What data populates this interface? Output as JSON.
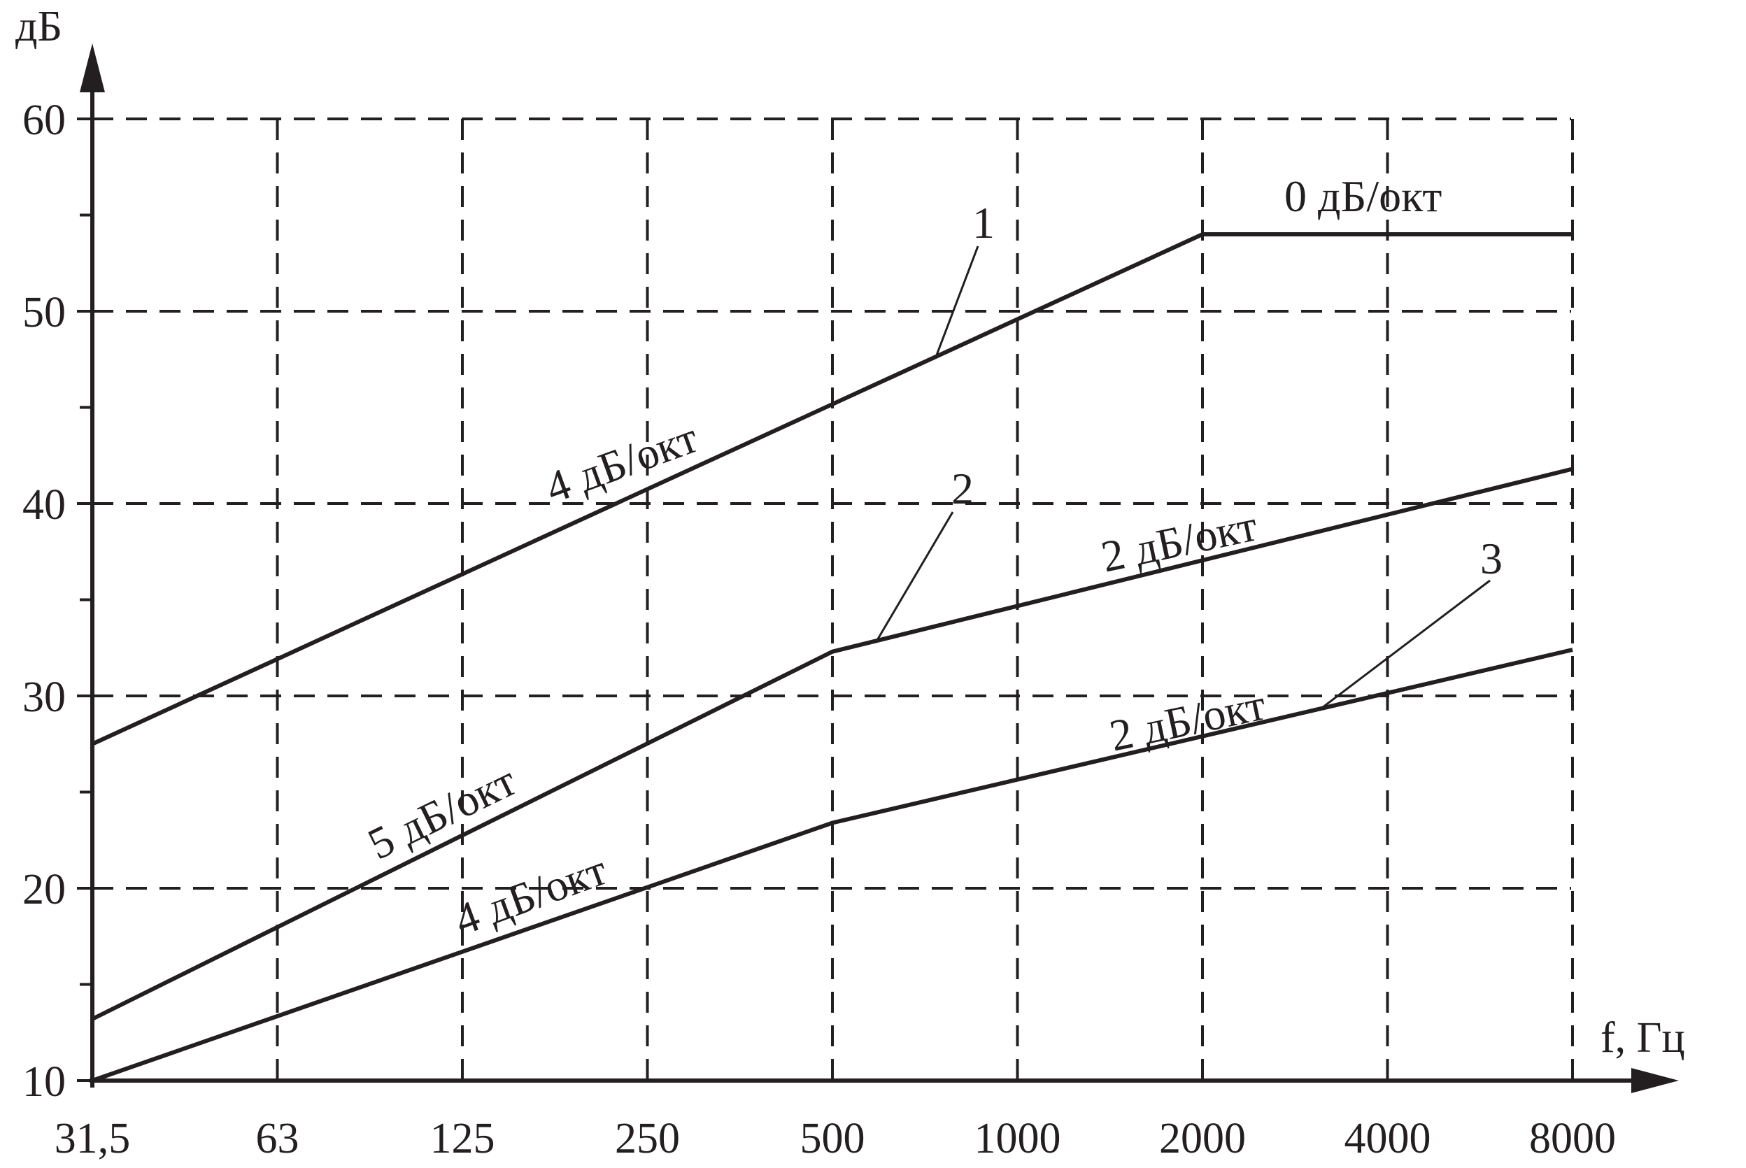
{
  "chart_data": {
    "type": "line",
    "ylabel": "дБ",
    "xlabel": "f, Гц",
    "ylim": [
      10,
      60
    ],
    "yticks": [
      10,
      20,
      30,
      40,
      50,
      60
    ],
    "x_categories": [
      "31,5",
      "63",
      "125",
      "250",
      "500",
      "1000",
      "2000",
      "4000",
      "8000"
    ],
    "grid": true,
    "x_scale": "octave",
    "series": [
      {
        "name": "1",
        "points": [
          {
            "x": "31,5",
            "y": 27.5
          },
          {
            "x": "2000",
            "y": 54
          },
          {
            "x": "8000",
            "y": 54
          }
        ]
      },
      {
        "name": "2",
        "points": [
          {
            "x": "31,5",
            "y": 13.2
          },
          {
            "x": "500",
            "y": 32.3
          },
          {
            "x": "8000",
            "y": 41.8
          }
        ]
      },
      {
        "name": "3",
        "points": [
          {
            "x": "31,5",
            "y": 10
          },
          {
            "x": "500",
            "y": 23.4
          },
          {
            "x": "8000",
            "y": 32.4
          }
        ]
      }
    ],
    "annotations": [
      {
        "text": "4 дБ/окт",
        "series": "1",
        "segment": 0
      },
      {
        "text": "0 дБ/окт",
        "series": "1",
        "segment": 1
      },
      {
        "text": "5 дБ/окт",
        "series": "2",
        "segment": 0
      },
      {
        "text": "2 дБ/окт",
        "series": "2",
        "segment": 1
      },
      {
        "text": "4 дБ/окт",
        "series": "3",
        "segment": 0
      },
      {
        "text": "2 дБ/окт",
        "series": "3",
        "segment": 1
      }
    ]
  },
  "colors": {
    "line": "#231f20",
    "background": "#ffffff"
  }
}
